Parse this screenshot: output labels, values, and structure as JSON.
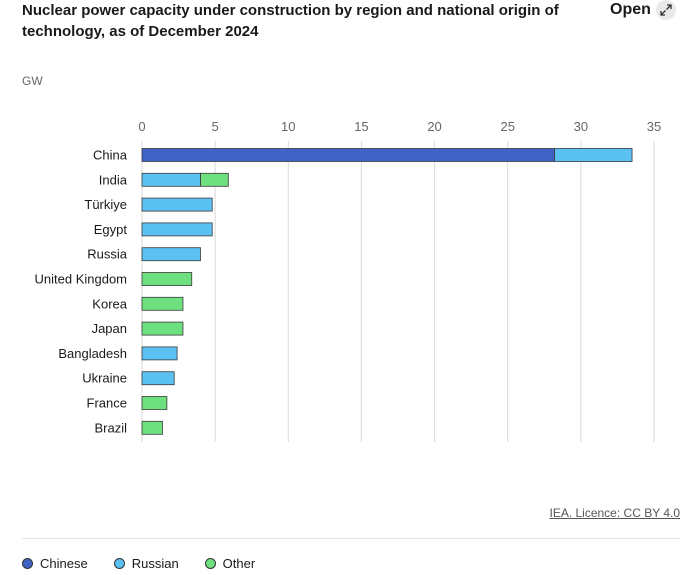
{
  "header": {
    "title": "Nuclear power capacity under construction by region and national origin of technology, as of December 2024",
    "open_label": "Open"
  },
  "credit": "IEA. Licence: CC BY 4.0",
  "colors": {
    "Chinese": "#3f63c4",
    "Russian": "#5bc0f2",
    "Other": "#6ee07f",
    "grid": "#d9d9d9",
    "text": "#1a1a1a",
    "axis_text": "#666666"
  },
  "chart_data": {
    "type": "bar",
    "orientation": "horizontal",
    "stacked": true,
    "title": "Nuclear power capacity under construction by region and national origin of technology, as of December 2024",
    "unit": "GW",
    "xlim": [
      0,
      35
    ],
    "xticks": [
      "0",
      "5",
      "10",
      "15",
      "20",
      "25",
      "30",
      "35"
    ],
    "grid": true,
    "legend_position": "bottom-left",
    "categories": [
      "China",
      "India",
      "Türkiye",
      "Egypt",
      "Russia",
      "United Kingdom",
      "Korea",
      "Japan",
      "Bangladesh",
      "Ukraine",
      "France",
      "Brazil"
    ],
    "series": [
      {
        "name": "Chinese",
        "values": [
          28.2,
          0,
          0,
          0,
          0,
          0,
          0,
          0,
          0,
          0,
          0,
          0
        ]
      },
      {
        "name": "Russian",
        "values": [
          5.3,
          4.0,
          4.8,
          4.8,
          4.0,
          0,
          0,
          0,
          2.4,
          2.2,
          0,
          0
        ]
      },
      {
        "name": "Other",
        "values": [
          0,
          1.9,
          0,
          0,
          0,
          3.4,
          2.8,
          2.8,
          0,
          0,
          1.7,
          1.4
        ]
      }
    ]
  }
}
